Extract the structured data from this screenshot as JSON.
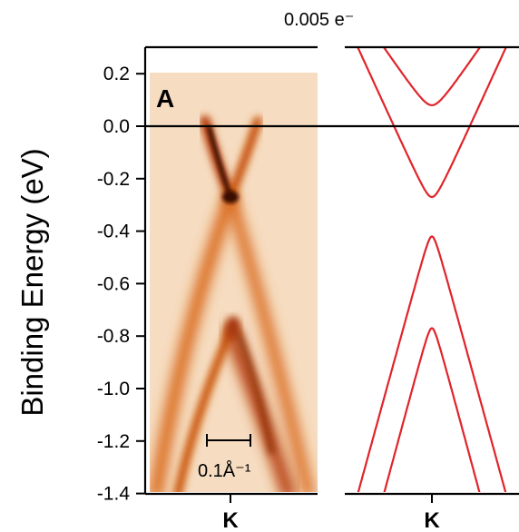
{
  "chart_data": {
    "type": "line",
    "ylabel": "Binding Energy (eV)",
    "ylim": [
      -1.4,
      0.25
    ],
    "yticks": [
      "0.2",
      "0.0",
      "-0.2",
      "-0.4",
      "-0.6",
      "-0.8",
      "-1.0",
      "-1.2",
      "-1.4"
    ],
    "ytick_values": [
      0.2,
      0.0,
      -0.2,
      -0.4,
      -0.6,
      -0.8,
      -1.0,
      -1.2,
      -1.4
    ],
    "panel_label": "A",
    "doping_label": "0.005 e⁻",
    "scale_bar_label": "0.1Å⁻¹",
    "xtick_label": "K",
    "fermi_level": 0.0,
    "colors": {
      "bands": "#e0242a",
      "arpes_dark": "#3a0a02",
      "arpes_mid": "#d86414",
      "arpes_bg": "#f6dcc0"
    },
    "panels": [
      {
        "name": "ARPES intensity map",
        "features": {
          "dirac_point": -0.27,
          "lower_crossing": -0.78
        }
      },
      {
        "name": "Calculated band structure",
        "series": [
          {
            "vertex": 0.08,
            "edge_energy": 0.3,
            "edge_k": 0.55
          },
          {
            "vertex": -0.27,
            "edge_energy": 0.3,
            "edge_k": 0.85
          },
          {
            "vertex": -0.42,
            "edge_energy": -1.4,
            "edge_k": 0.85
          },
          {
            "vertex": -0.77,
            "edge_energy": -1.4,
            "edge_k": 0.55
          }
        ]
      }
    ]
  }
}
